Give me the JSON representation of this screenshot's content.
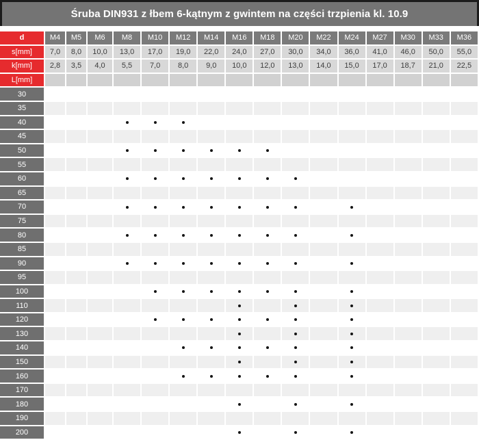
{
  "title": "Śruba DIN931 z łbem 6-kątnym z gwintem na części trzpienia kl. 10.9",
  "columns": [
    "M4",
    "M5",
    "M6",
    "M8",
    "M10",
    "M12",
    "M14",
    "M16",
    "M18",
    "M20",
    "M22",
    "M24",
    "M27",
    "M30",
    "M33",
    "M36"
  ],
  "spec": {
    "d_label": "d",
    "s_label": "s[mm]",
    "k_label": "k[mm]",
    "l_label": "L[mm]",
    "s_values": [
      "7,0",
      "8,0",
      "10,0",
      "13,0",
      "17,0",
      "19,0",
      "22,0",
      "24,0",
      "27,0",
      "30,0",
      "34,0",
      "36,0",
      "41,0",
      "46,0",
      "50,0",
      "55,0"
    ],
    "k_values": [
      "2,8",
      "3,5",
      "4,0",
      "5,5",
      "7,0",
      "8,0",
      "9,0",
      "10,0",
      "12,0",
      "13,0",
      "14,0",
      "15,0",
      "17,0",
      "18,7",
      "21,0",
      "22,5"
    ]
  },
  "lengths": [
    {
      "length": "30",
      "available": []
    },
    {
      "length": "35",
      "available": []
    },
    {
      "length": "40",
      "available": [
        "M8",
        "M10",
        "M12"
      ]
    },
    {
      "length": "45",
      "available": []
    },
    {
      "length": "50",
      "available": [
        "M8",
        "M10",
        "M12",
        "M14",
        "M16",
        "M18"
      ]
    },
    {
      "length": "55",
      "available": []
    },
    {
      "length": "60",
      "available": [
        "M8",
        "M10",
        "M12",
        "M14",
        "M16",
        "M18",
        "M20"
      ]
    },
    {
      "length": "65",
      "available": []
    },
    {
      "length": "70",
      "available": [
        "M8",
        "M10",
        "M12",
        "M14",
        "M16",
        "M18",
        "M20",
        "M24"
      ]
    },
    {
      "length": "75",
      "available": []
    },
    {
      "length": "80",
      "available": [
        "M8",
        "M10",
        "M12",
        "M14",
        "M16",
        "M18",
        "M20",
        "M24"
      ]
    },
    {
      "length": "85",
      "available": []
    },
    {
      "length": "90",
      "available": [
        "M8",
        "M10",
        "M12",
        "M14",
        "M16",
        "M18",
        "M20",
        "M24"
      ]
    },
    {
      "length": "95",
      "available": []
    },
    {
      "length": "100",
      "available": [
        "M10",
        "M12",
        "M14",
        "M16",
        "M18",
        "M20",
        "M24"
      ]
    },
    {
      "length": "110",
      "available": [
        "M16",
        "M20",
        "M24"
      ]
    },
    {
      "length": "120",
      "available": [
        "M10",
        "M12",
        "M14",
        "M16",
        "M18",
        "M20",
        "M24"
      ]
    },
    {
      "length": "130",
      "available": [
        "M16",
        "M20",
        "M24"
      ]
    },
    {
      "length": "140",
      "available": [
        "M12",
        "M14",
        "M16",
        "M18",
        "M20",
        "M24"
      ]
    },
    {
      "length": "150",
      "available": [
        "M16",
        "M20",
        "M24"
      ]
    },
    {
      "length": "160",
      "available": [
        "M12",
        "M14",
        "M16",
        "M18",
        "M20",
        "M24"
      ]
    },
    {
      "length": "170",
      "available": []
    },
    {
      "length": "180",
      "available": [
        "M16",
        "M20",
        "M24"
      ]
    },
    {
      "length": "190",
      "available": []
    },
    {
      "length": "200",
      "available": [
        "M16",
        "M20",
        "M24"
      ]
    }
  ],
  "colors": {
    "accent_red": "#e62b2e",
    "title_bar_gray": "#747474",
    "header_cell_gray": "#7a7a7a",
    "value_cell_gray": "#d8d8d8",
    "l_row_cell_gray": "#d1d1d1",
    "length_label_gray": "#6f6f6f",
    "stripe_row_gray": "#efefef",
    "dot_black": "#151515"
  }
}
